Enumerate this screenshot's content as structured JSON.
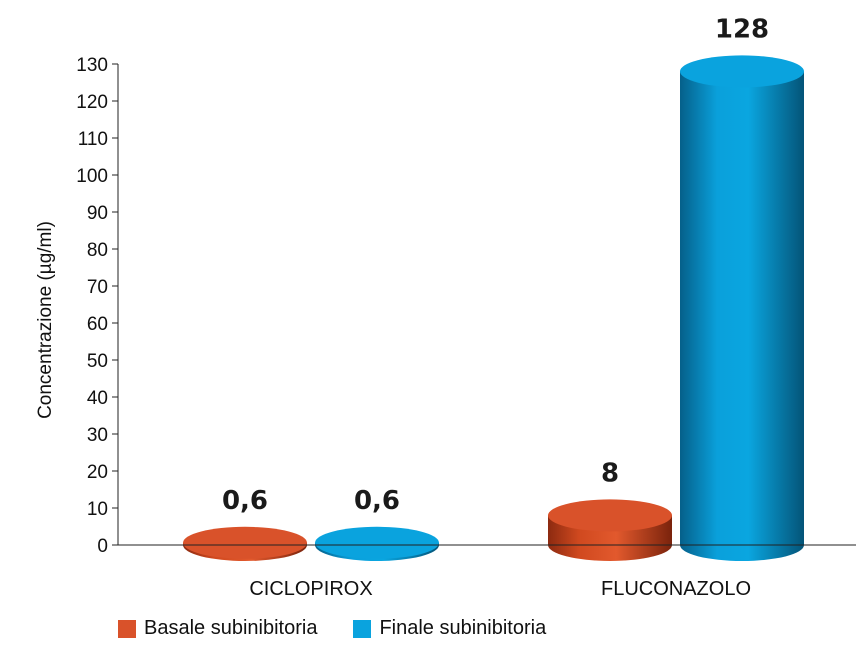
{
  "chart_data": {
    "type": "bar",
    "categories": [
      "CICLOPIROX",
      "FLUCONAZOLO"
    ],
    "series": [
      {
        "name": "Basale subinibitoria",
        "values": [
          0.6,
          8
        ],
        "labels": [
          "0,6",
          "8"
        ],
        "color": "#d9522a"
      },
      {
        "name": "Finale subinibitoria",
        "values": [
          0.6,
          128
        ],
        "labels": [
          "0,6",
          "128"
        ],
        "color": "#0aa3de"
      }
    ],
    "ylabel": "Concentrazione (µg/ml)",
    "xlabel": "",
    "title": "",
    "ylim": [
      0,
      130
    ],
    "yticks": [
      0,
      10,
      20,
      30,
      40,
      50,
      60,
      70,
      80,
      90,
      100,
      110,
      120,
      130
    ],
    "style": "3d-cylinder",
    "legend_position": "bottom-left",
    "grid": false
  }
}
